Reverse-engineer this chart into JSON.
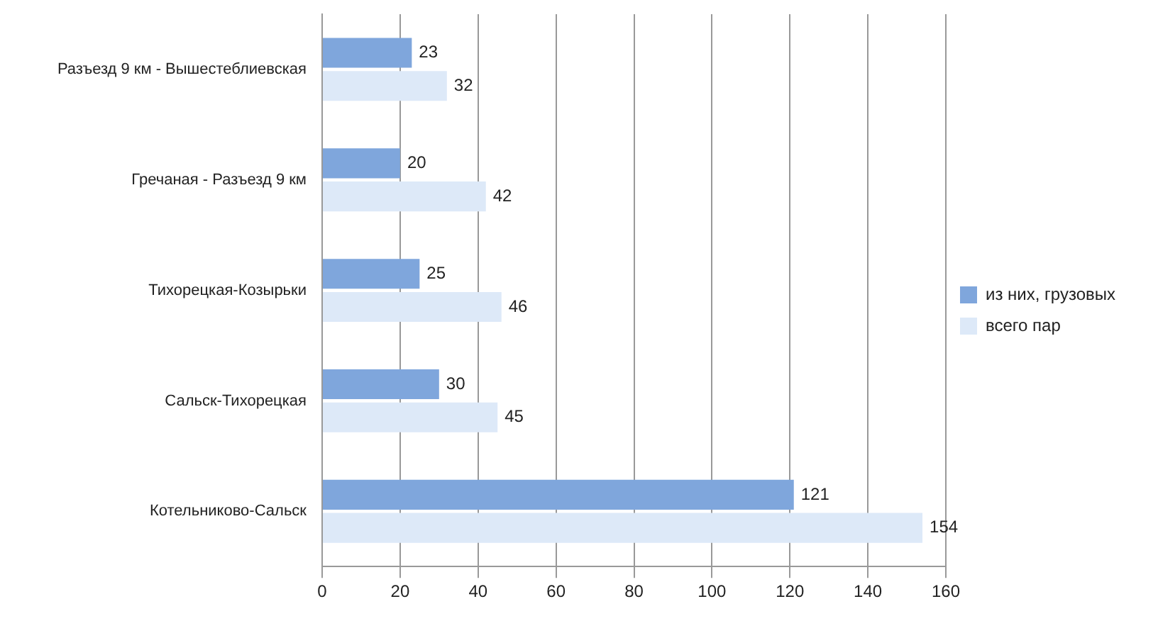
{
  "chart_data": {
    "type": "bar",
    "orientation": "horizontal",
    "categories": [
      "Разъезд 9 км - Вышестеблиевская",
      "Гречаная - Разъезд 9 км",
      "Тихорецкая-Козырьки",
      "Сальск-Тихорецкая",
      "Котельниково-Сальск"
    ],
    "series": [
      {
        "name": "из них, грузовых",
        "color": "#7fa6dc",
        "values": [
          23,
          20,
          25,
          30,
          121
        ]
      },
      {
        "name": "всего пар",
        "color": "#dde9f8",
        "values": [
          32,
          42,
          46,
          45,
          154
        ]
      }
    ],
    "xlim": [
      0,
      160
    ],
    "xticks": [
      0,
      20,
      40,
      60,
      80,
      100,
      120,
      140,
      160
    ],
    "grid": "x",
    "legend": "right",
    "data_labels": true
  }
}
